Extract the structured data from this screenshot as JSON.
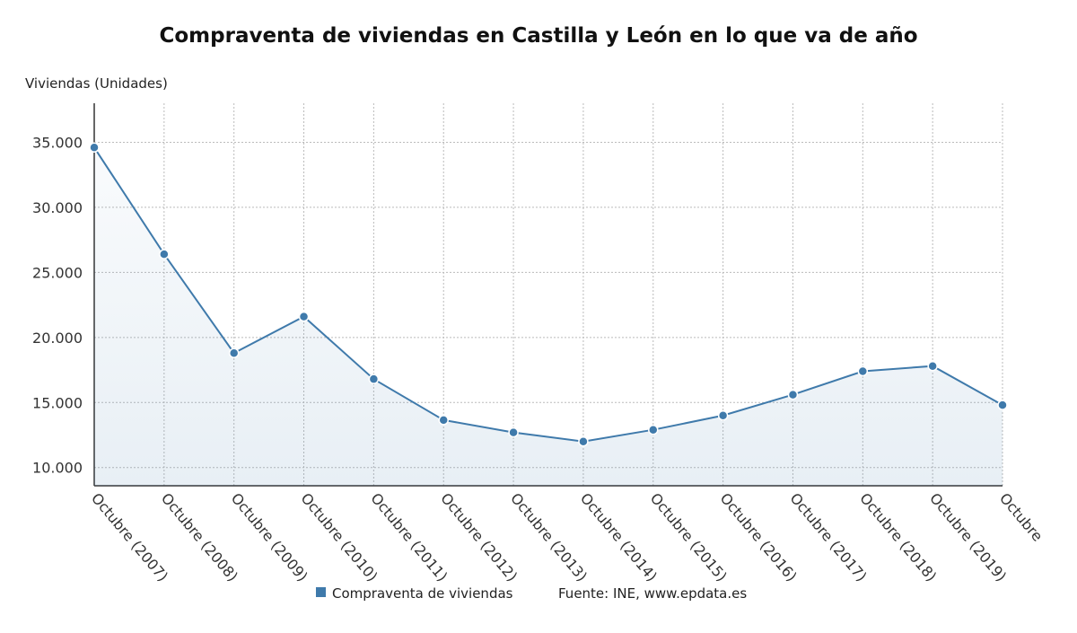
{
  "chart_data": {
    "type": "line",
    "title": "Compraventa de viviendas en Castilla y León en lo que va de año",
    "y_axis_label": "Viviendas (Unidades)",
    "source": "Fuente: INE, www.epdata.es",
    "categories": [
      "Octubre (2007)",
      "Octubre (2008)",
      "Octubre (2009)",
      "Octubre (2010)",
      "Octubre (2011)",
      "Octubre (2012)",
      "Octubre (2013)",
      "Octubre (2014)",
      "Octubre (2015)",
      "Octubre (2016)",
      "Octubre (2017)",
      "Octubre (2018)",
      "Octubre (2019)",
      "Octubre"
    ],
    "series": [
      {
        "name": "Compraventa de viviendas",
        "color": "#3f7aab",
        "values": [
          34600,
          26400,
          18800,
          21600,
          16800,
          13650,
          12700,
          12000,
          12900,
          14000,
          15600,
          17400,
          17800,
          14800
        ]
      }
    ],
    "ylim": [
      8600,
      38000
    ],
    "yticks": [
      {
        "value": 10000,
        "label": "10.000"
      },
      {
        "value": 15000,
        "label": "15.000"
      },
      {
        "value": 20000,
        "label": "20.000"
      },
      {
        "value": 25000,
        "label": "25.000"
      },
      {
        "value": 30000,
        "label": "30.000"
      },
      {
        "value": 35000,
        "label": "35.000"
      }
    ],
    "grid": true
  }
}
